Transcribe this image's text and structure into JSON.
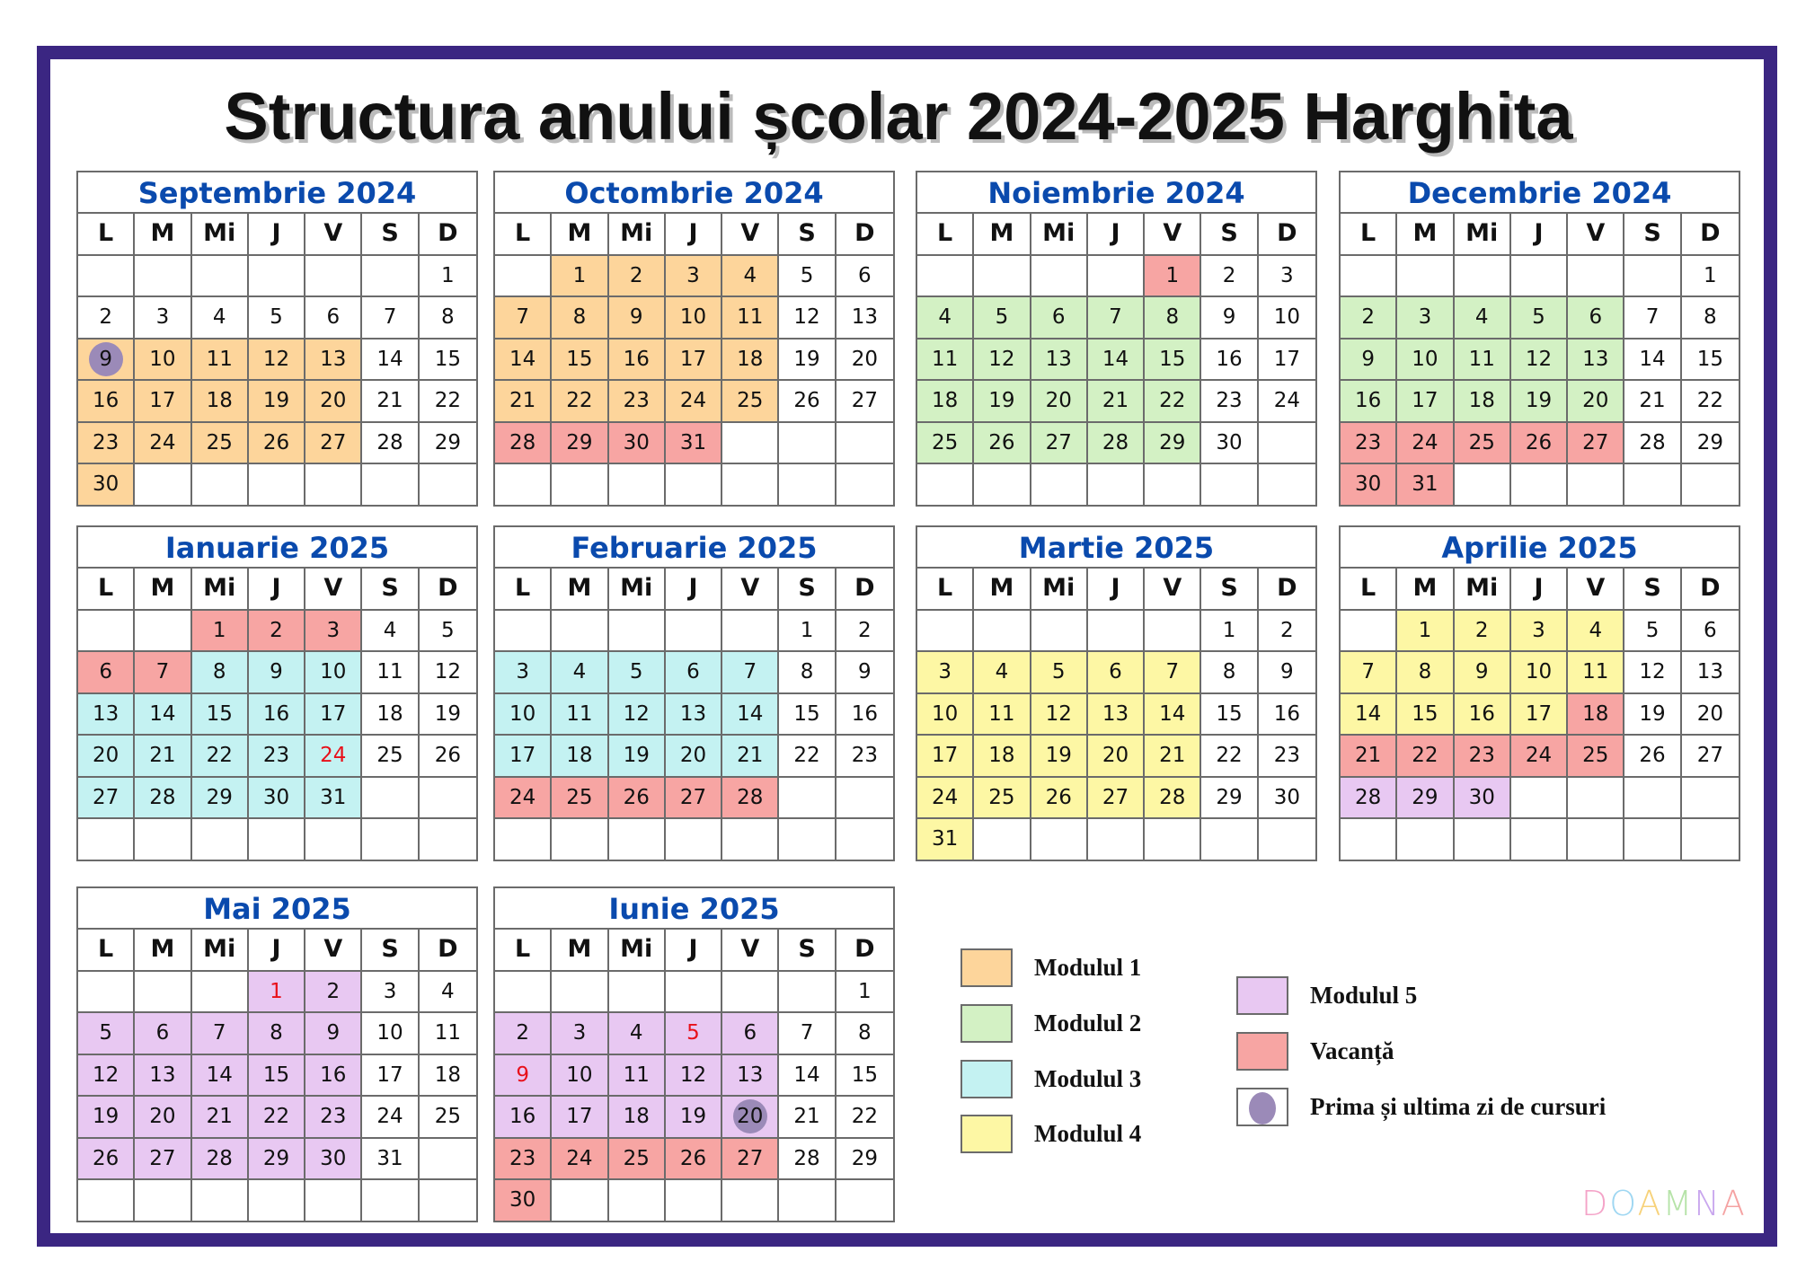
{
  "title": "Structura anului școlar 2024-2025 Harghita",
  "weekday_headers": [
    "L",
    "M",
    "Mi",
    "J",
    "V",
    "S",
    "D"
  ],
  "colors": {
    "m1": "#fdd59b",
    "m2": "#d3f1c4",
    "m3": "#c4f2f2",
    "m4": "#fdf7a4",
    "m5": "#e8c8f2",
    "vac": "#f7a5a3",
    "circle": "#9b8ab8",
    "month_title": "#0a4aad",
    "frame": "#3b2682"
  },
  "months": [
    {
      "name": "Septembrie 2024",
      "offset": 6,
      "days": 30,
      "ranges": [
        [
          "m1",
          9,
          13
        ],
        [
          "m1",
          16,
          20
        ],
        [
          "m1",
          23,
          27
        ],
        [
          "m1",
          30,
          30
        ]
      ],
      "red": [],
      "circle": [
        9
      ]
    },
    {
      "name": "Octombrie 2024",
      "offset": 1,
      "days": 31,
      "ranges": [
        [
          "m1",
          1,
          4
        ],
        [
          "m1",
          7,
          11
        ],
        [
          "m1",
          14,
          18
        ],
        [
          "m1",
          21,
          25
        ],
        [
          "vac",
          28,
          31
        ]
      ],
      "red": [],
      "circle": []
    },
    {
      "name": "Noiembrie 2024",
      "offset": 4,
      "days": 30,
      "ranges": [
        [
          "vac",
          1,
          1
        ],
        [
          "m2",
          4,
          8
        ],
        [
          "m2",
          11,
          15
        ],
        [
          "m2",
          18,
          22
        ],
        [
          "m2",
          25,
          29
        ]
      ],
      "red": [],
      "circle": []
    },
    {
      "name": "Decembrie 2024",
      "offset": 6,
      "days": 31,
      "ranges": [
        [
          "m2",
          2,
          6
        ],
        [
          "m2",
          9,
          13
        ],
        [
          "m2",
          16,
          20
        ],
        [
          "vac",
          23,
          27
        ],
        [
          "vac",
          30,
          31
        ]
      ],
      "red": [],
      "circle": []
    },
    {
      "name": "Ianuarie 2025",
      "offset": 2,
      "days": 31,
      "ranges": [
        [
          "vac",
          1,
          3
        ],
        [
          "vac",
          6,
          7
        ],
        [
          "m3",
          8,
          10
        ],
        [
          "m3",
          13,
          17
        ],
        [
          "m3",
          20,
          24
        ],
        [
          "m3",
          27,
          31
        ]
      ],
      "red": [
        24
      ],
      "circle": []
    },
    {
      "name": "Februarie 2025",
      "offset": 5,
      "days": 28,
      "ranges": [
        [
          "m3",
          3,
          7
        ],
        [
          "m3",
          10,
          14
        ],
        [
          "m3",
          17,
          21
        ],
        [
          "vac",
          24,
          28
        ]
      ],
      "red": [],
      "circle": []
    },
    {
      "name": "Martie 2025",
      "offset": 5,
      "days": 31,
      "ranges": [
        [
          "m4",
          3,
          7
        ],
        [
          "m4",
          10,
          14
        ],
        [
          "m4",
          17,
          21
        ],
        [
          "m4",
          24,
          28
        ],
        [
          "m4",
          31,
          31
        ]
      ],
      "red": [],
      "circle": []
    },
    {
      "name": "Aprilie 2025",
      "offset": 1,
      "days": 30,
      "ranges": [
        [
          "m4",
          1,
          4
        ],
        [
          "m4",
          7,
          11
        ],
        [
          "m4",
          14,
          17
        ],
        [
          "vac",
          18,
          18
        ],
        [
          "vac",
          21,
          25
        ],
        [
          "m5",
          28,
          30
        ]
      ],
      "red": [],
      "circle": []
    },
    {
      "name": "Mai 2025",
      "offset": 3,
      "days": 31,
      "ranges": [
        [
          "m5",
          1,
          2
        ],
        [
          "m5",
          5,
          9
        ],
        [
          "m5",
          12,
          16
        ],
        [
          "m5",
          19,
          23
        ],
        [
          "m5",
          26,
          30
        ]
      ],
      "red": [
        1
      ],
      "circle": []
    },
    {
      "name": "Iunie 2025",
      "offset": 6,
      "days": 30,
      "ranges": [
        [
          "m5",
          2,
          6
        ],
        [
          "m5",
          9,
          13
        ],
        [
          "m5",
          16,
          20
        ],
        [
          "vac",
          23,
          27
        ],
        [
          "vac",
          30,
          30
        ]
      ],
      "red": [
        5,
        9
      ],
      "circle": [
        20
      ]
    }
  ],
  "legend": [
    {
      "type": "m1",
      "label": "Modulul 1"
    },
    {
      "type": "m2",
      "label": "Modulul 2"
    },
    {
      "type": "m3",
      "label": "Modulul 3"
    },
    {
      "type": "m4",
      "label": "Modulul 4"
    },
    {
      "type": "m5",
      "label": "Modulul 5"
    },
    {
      "type": "vac",
      "label": "Vacanță"
    },
    {
      "type": "circle",
      "label": "Prima și ultima zi de cursuri"
    }
  ],
  "watermark": "DOAMNA"
}
